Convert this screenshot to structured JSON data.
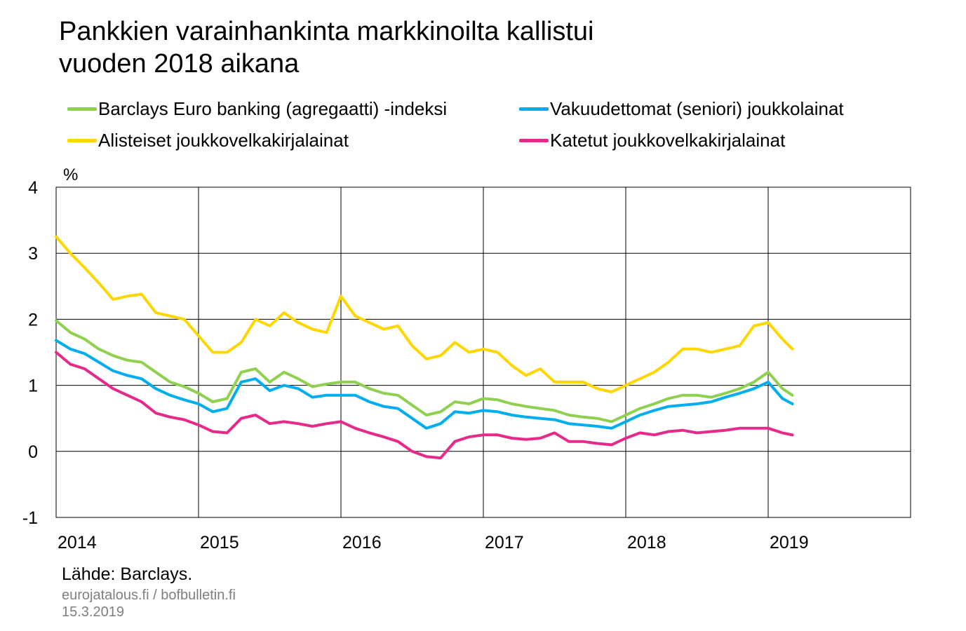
{
  "title_line1": "Pankkien varainhankinta markkinoilta kallistui",
  "title_line2": "vuoden 2018 aikana",
  "unit_label": "%",
  "source": "Lähde: Barclays.",
  "site": "eurojatalous.fi / bofbulletin.fi",
  "date": "15.3.2019",
  "chart_data": {
    "type": "line",
    "ylim": [
      -1,
      4
    ],
    "xlim": [
      2014.0,
      2020.0
    ],
    "grid": true,
    "legend_position": "top",
    "y_ticks": [
      "4",
      "3",
      "2",
      "1",
      "0",
      "-1"
    ],
    "x_ticks": [
      "2014",
      "2015",
      "2016",
      "2017",
      "2018",
      "2019"
    ],
    "series": [
      {
        "name": "Barclays Euro banking (agregaatti) -indeksi",
        "color": "#8fd14f",
        "x": [
          2014.0,
          2014.1,
          2014.2,
          2014.3,
          2014.4,
          2014.5,
          2014.6,
          2014.7,
          2014.8,
          2014.9,
          2015.0,
          2015.1,
          2015.2,
          2015.3,
          2015.4,
          2015.5,
          2015.6,
          2015.7,
          2015.8,
          2015.9,
          2016.0,
          2016.1,
          2016.2,
          2016.3,
          2016.4,
          2016.5,
          2016.6,
          2016.7,
          2016.8,
          2016.9,
          2017.0,
          2017.1,
          2017.2,
          2017.3,
          2017.4,
          2017.5,
          2017.6,
          2017.7,
          2017.8,
          2017.9,
          2018.0,
          2018.1,
          2018.2,
          2018.3,
          2018.4,
          2018.5,
          2018.6,
          2018.7,
          2018.8,
          2018.9,
          2019.0,
          2019.1,
          2019.17
        ],
        "values": [
          1.98,
          1.8,
          1.7,
          1.55,
          1.45,
          1.38,
          1.35,
          1.2,
          1.05,
          0.98,
          0.88,
          0.75,
          0.8,
          1.2,
          1.25,
          1.05,
          1.2,
          1.1,
          0.98,
          1.02,
          1.05,
          1.05,
          0.95,
          0.88,
          0.85,
          0.7,
          0.55,
          0.6,
          0.75,
          0.72,
          0.8,
          0.78,
          0.72,
          0.68,
          0.65,
          0.62,
          0.55,
          0.52,
          0.5,
          0.45,
          0.55,
          0.65,
          0.72,
          0.8,
          0.85,
          0.85,
          0.82,
          0.88,
          0.95,
          1.05,
          1.2,
          0.95,
          0.85
        ]
      },
      {
        "name": "Vakuudettomat (seniori) joukkolainat",
        "color": "#00aeef",
        "x": [
          2014.0,
          2014.1,
          2014.2,
          2014.3,
          2014.4,
          2014.5,
          2014.6,
          2014.7,
          2014.8,
          2014.9,
          2015.0,
          2015.1,
          2015.2,
          2015.3,
          2015.4,
          2015.5,
          2015.6,
          2015.7,
          2015.8,
          2015.9,
          2016.0,
          2016.1,
          2016.2,
          2016.3,
          2016.4,
          2016.5,
          2016.6,
          2016.7,
          2016.8,
          2016.9,
          2017.0,
          2017.1,
          2017.2,
          2017.3,
          2017.4,
          2017.5,
          2017.6,
          2017.7,
          2017.8,
          2017.9,
          2018.0,
          2018.1,
          2018.2,
          2018.3,
          2018.4,
          2018.5,
          2018.6,
          2018.7,
          2018.8,
          2018.9,
          2019.0,
          2019.1,
          2019.17
        ],
        "values": [
          1.68,
          1.55,
          1.48,
          1.35,
          1.22,
          1.15,
          1.1,
          0.95,
          0.85,
          0.78,
          0.72,
          0.6,
          0.65,
          1.05,
          1.1,
          0.92,
          1.0,
          0.95,
          0.82,
          0.85,
          0.85,
          0.85,
          0.75,
          0.68,
          0.65,
          0.5,
          0.35,
          0.42,
          0.6,
          0.58,
          0.62,
          0.6,
          0.55,
          0.52,
          0.5,
          0.48,
          0.42,
          0.4,
          0.38,
          0.35,
          0.45,
          0.55,
          0.62,
          0.68,
          0.7,
          0.72,
          0.75,
          0.82,
          0.88,
          0.95,
          1.05,
          0.8,
          0.72
        ]
      },
      {
        "name": "Alisteiset joukkovelkakirjalainat",
        "color": "#ffd700",
        "x": [
          2014.0,
          2014.1,
          2014.2,
          2014.3,
          2014.4,
          2014.5,
          2014.6,
          2014.7,
          2014.8,
          2014.9,
          2015.0,
          2015.1,
          2015.2,
          2015.3,
          2015.4,
          2015.5,
          2015.6,
          2015.7,
          2015.8,
          2015.9,
          2016.0,
          2016.1,
          2016.15,
          2016.2,
          2016.3,
          2016.4,
          2016.5,
          2016.6,
          2016.7,
          2016.8,
          2016.9,
          2017.0,
          2017.1,
          2017.2,
          2017.3,
          2017.4,
          2017.5,
          2017.6,
          2017.7,
          2017.8,
          2017.9,
          2018.0,
          2018.1,
          2018.2,
          2018.3,
          2018.4,
          2018.5,
          2018.6,
          2018.7,
          2018.8,
          2018.9,
          2019.0,
          2019.1,
          2019.17
        ],
        "values": [
          3.25,
          3.0,
          2.78,
          2.55,
          2.3,
          2.35,
          2.38,
          2.1,
          2.05,
          2.0,
          1.75,
          1.5,
          1.5,
          1.65,
          2.0,
          1.9,
          2.1,
          1.95,
          1.85,
          1.8,
          2.35,
          2.05,
          2.0,
          1.95,
          1.85,
          1.9,
          1.6,
          1.4,
          1.45,
          1.65,
          1.5,
          1.55,
          1.5,
          1.3,
          1.15,
          1.25,
          1.05,
          1.05,
          1.05,
          0.95,
          0.9,
          1.0,
          1.1,
          1.2,
          1.35,
          1.55,
          1.55,
          1.5,
          1.55,
          1.6,
          1.9,
          1.95,
          1.7,
          1.55
        ]
      },
      {
        "name": "Katetut joukkovelkakirjalainat",
        "color": "#e7298a",
        "x": [
          2014.0,
          2014.1,
          2014.2,
          2014.3,
          2014.4,
          2014.5,
          2014.6,
          2014.7,
          2014.8,
          2014.9,
          2015.0,
          2015.1,
          2015.2,
          2015.3,
          2015.4,
          2015.5,
          2015.6,
          2015.7,
          2015.8,
          2015.9,
          2016.0,
          2016.1,
          2016.2,
          2016.3,
          2016.4,
          2016.5,
          2016.6,
          2016.7,
          2016.8,
          2016.9,
          2017.0,
          2017.1,
          2017.2,
          2017.3,
          2017.4,
          2017.5,
          2017.6,
          2017.7,
          2017.8,
          2017.9,
          2018.0,
          2018.1,
          2018.2,
          2018.3,
          2018.4,
          2018.5,
          2018.6,
          2018.7,
          2018.8,
          2018.9,
          2019.0,
          2019.1,
          2019.17
        ],
        "values": [
          1.5,
          1.32,
          1.25,
          1.1,
          0.95,
          0.85,
          0.75,
          0.58,
          0.52,
          0.48,
          0.4,
          0.3,
          0.28,
          0.5,
          0.55,
          0.42,
          0.45,
          0.42,
          0.38,
          0.42,
          0.45,
          0.35,
          0.28,
          0.22,
          0.15,
          0.0,
          -0.08,
          -0.1,
          0.15,
          0.22,
          0.25,
          0.25,
          0.2,
          0.18,
          0.2,
          0.28,
          0.15,
          0.15,
          0.12,
          0.1,
          0.2,
          0.28,
          0.25,
          0.3,
          0.32,
          0.28,
          0.3,
          0.32,
          0.35,
          0.35,
          0.35,
          0.28,
          0.25
        ]
      }
    ]
  }
}
